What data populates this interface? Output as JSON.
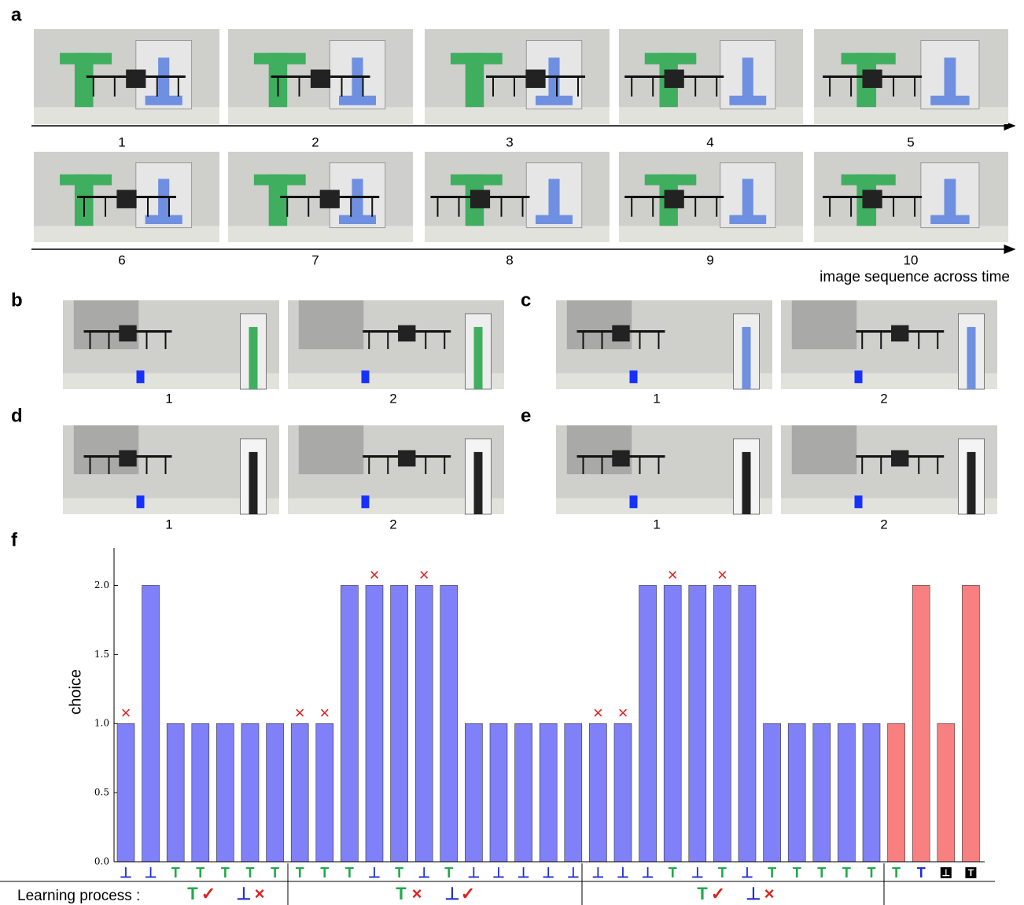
{
  "panels": {
    "a": {
      "label": "a",
      "frames": [
        "1",
        "2",
        "3",
        "4",
        "5",
        "6",
        "7",
        "8",
        "9",
        "10"
      ],
      "axis_label": "image sequence across time"
    },
    "b": {
      "label": "b",
      "frames": [
        "1",
        "2"
      ]
    },
    "c": {
      "label": "c",
      "frames": [
        "1",
        "2"
      ]
    },
    "d": {
      "label": "d",
      "frames": [
        "1",
        "2"
      ]
    },
    "e": {
      "label": "e",
      "frames": [
        "1",
        "2"
      ]
    },
    "f": {
      "label": "f"
    }
  },
  "chart_data": {
    "type": "bar",
    "y_label": "choice",
    "categories": [
      "⊥",
      "⊥",
      "T",
      "T",
      "T",
      "T",
      "T",
      "T",
      "T",
      "T",
      "⊥",
      "T",
      "⊥",
      "T",
      "⊥",
      "⊥",
      "⊥",
      "⊥",
      "⊥",
      "⊥",
      "⊥",
      "⊥",
      "T",
      "⊥",
      "T",
      "⊥",
      "T",
      "T",
      "T",
      "T",
      "T",
      "T",
      "T",
      "⊥",
      "T"
    ],
    "category_colors": [
      "#2030d0",
      "#2030d0",
      "#22a84a",
      "#22a84a",
      "#22a84a",
      "#22a84a",
      "#22a84a",
      "#22a84a",
      "#22a84a",
      "#22a84a",
      "#2030d0",
      "#22a84a",
      "#2030d0",
      "#22a84a",
      "#2030d0",
      "#2030d0",
      "#2030d0",
      "#2030d0",
      "#2030d0",
      "#2030d0",
      "#2030d0",
      "#2030d0",
      "#22a84a",
      "#2030d0",
      "#22a84a",
      "#2030d0",
      "#22a84a",
      "#22a84a",
      "#22a84a",
      "#22a84a",
      "#22a84a",
      "#22a84a",
      "#2030d0",
      "#000000",
      "#000000"
    ],
    "values": [
      1,
      2,
      1,
      1,
      1,
      1,
      1,
      1,
      1,
      2,
      2,
      2,
      2,
      2,
      1,
      1,
      1,
      1,
      1,
      1,
      1,
      2,
      2,
      2,
      2,
      2,
      1,
      1,
      1,
      1,
      1,
      1,
      2,
      1,
      2
    ],
    "colors": [
      "#8080f8",
      "#8080f8",
      "#8080f8",
      "#8080f8",
      "#8080f8",
      "#8080f8",
      "#8080f8",
      "#8080f8",
      "#8080f8",
      "#8080f8",
      "#8080f8",
      "#8080f8",
      "#8080f8",
      "#8080f8",
      "#8080f8",
      "#8080f8",
      "#8080f8",
      "#8080f8",
      "#8080f8",
      "#8080f8",
      "#8080f8",
      "#8080f8",
      "#8080f8",
      "#8080f8",
      "#8080f8",
      "#8080f8",
      "#8080f8",
      "#8080f8",
      "#8080f8",
      "#8080f8",
      "#8080f8",
      "#f88080",
      "#f88080",
      "#f88080",
      "#f88080"
    ],
    "bar_marks": [
      "×",
      null,
      null,
      null,
      null,
      null,
      null,
      "×",
      "×",
      null,
      "×",
      null,
      "×",
      null,
      null,
      null,
      null,
      null,
      null,
      "×",
      "×",
      null,
      "×",
      null,
      "×",
      null,
      null,
      null,
      null,
      null,
      null,
      null,
      null,
      null,
      null
    ],
    "mark_color": "#e02020",
    "ylim": [
      0,
      2.27
    ],
    "yticks": [
      {
        "value": 0,
        "label": "0.0"
      },
      {
        "value": 0.5,
        "label": "0.5"
      },
      {
        "value": 1,
        "label": "1.0"
      },
      {
        "value": 1.5,
        "label": "1.5"
      },
      {
        "value": 2,
        "label": "2.0"
      }
    ],
    "learning_process": {
      "label": "Learning process :",
      "symbol_colors": {
        "T": "#22a84a",
        "⊥": "#2030d0"
      },
      "groups": [
        [
          {
            "symbol": "T",
            "mark": "✓"
          },
          {
            "symbol": "⊥",
            "mark": "×"
          }
        ],
        [
          {
            "symbol": "T",
            "mark": "×"
          },
          {
            "symbol": "⊥",
            "mark": "✓"
          }
        ],
        [
          {
            "symbol": "T",
            "mark": "✓"
          },
          {
            "symbol": "⊥",
            "mark": "×"
          }
        ]
      ]
    }
  }
}
